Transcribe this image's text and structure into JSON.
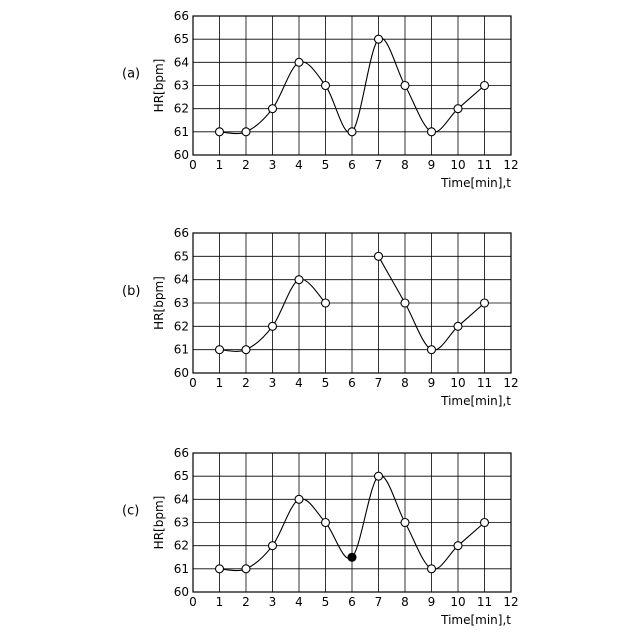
{
  "chart_data": [
    {
      "type": "line",
      "panel_label": "(a)",
      "xlabel": "Time[min],t",
      "ylabel": "HR[bpm]",
      "xlim": [
        0,
        12
      ],
      "ylim": [
        60,
        66
      ],
      "x_ticks": [
        "0",
        "1",
        "2",
        "3",
        "4",
        "5",
        "6",
        "7",
        "8",
        "9",
        "10",
        "11",
        "12"
      ],
      "y_ticks": [
        "60",
        "61",
        "62",
        "63",
        "64",
        "65",
        "66"
      ],
      "grid": true,
      "segments": [
        [
          [
            1,
            61
          ],
          [
            2,
            61
          ],
          [
            3,
            62
          ],
          [
            4,
            64
          ],
          [
            5,
            63
          ],
          [
            6,
            61
          ],
          [
            7,
            65
          ],
          [
            8,
            63
          ],
          [
            9,
            61
          ],
          [
            10,
            62
          ],
          [
            11,
            63
          ]
        ]
      ],
      "filled_points": []
    },
    {
      "type": "line",
      "panel_label": "(b)",
      "xlabel": "Time[min],t",
      "ylabel": "HR[bpm]",
      "xlim": [
        0,
        12
      ],
      "ylim": [
        60,
        66
      ],
      "x_ticks": [
        "0",
        "1",
        "2",
        "3",
        "4",
        "5",
        "6",
        "7",
        "8",
        "9",
        "10",
        "11",
        "12"
      ],
      "y_ticks": [
        "60",
        "61",
        "62",
        "63",
        "64",
        "65",
        "66"
      ],
      "grid": true,
      "segments": [
        [
          [
            1,
            61
          ],
          [
            2,
            61
          ],
          [
            3,
            62
          ],
          [
            4,
            64
          ],
          [
            5,
            63
          ]
        ],
        [
          [
            7,
            65
          ],
          [
            8,
            63
          ],
          [
            9,
            61
          ],
          [
            10,
            62
          ],
          [
            11,
            63
          ]
        ]
      ],
      "filled_points": []
    },
    {
      "type": "line",
      "panel_label": "(c)",
      "xlabel": "Time[min],t",
      "ylabel": "HR[bpm]",
      "xlim": [
        0,
        12
      ],
      "ylim": [
        60,
        66
      ],
      "x_ticks": [
        "0",
        "1",
        "2",
        "3",
        "4",
        "5",
        "6",
        "7",
        "8",
        "9",
        "10",
        "11",
        "12"
      ],
      "y_ticks": [
        "60",
        "61",
        "62",
        "63",
        "64",
        "65",
        "66"
      ],
      "grid": true,
      "segments": [
        [
          [
            1,
            61
          ],
          [
            2,
            61
          ],
          [
            3,
            62
          ],
          [
            4,
            64
          ],
          [
            5,
            63
          ],
          [
            6,
            61.5
          ],
          [
            7,
            65
          ],
          [
            8,
            63
          ],
          [
            9,
            61
          ],
          [
            10,
            62
          ],
          [
            11,
            63
          ]
        ]
      ],
      "filled_points": [
        [
          6,
          61.5
        ]
      ]
    }
  ]
}
